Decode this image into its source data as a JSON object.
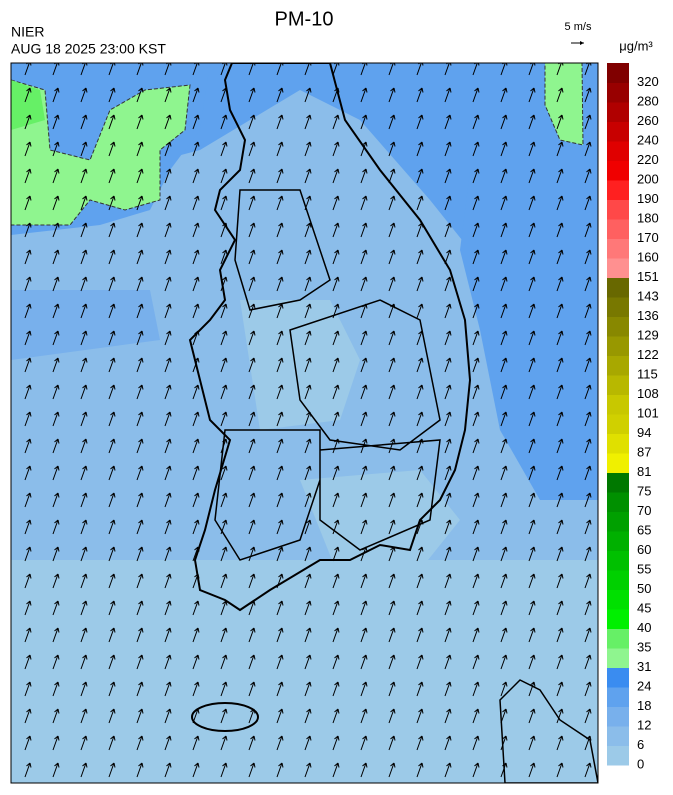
{
  "header": {
    "title": "PM-10",
    "agency": "NIER",
    "datetime": "AUG 18 2025 23:00 KST",
    "wind_scale": "5 m/s"
  },
  "legend": {
    "unit": "μg/m³",
    "levels": [
      0,
      6,
      12,
      18,
      24,
      31,
      35,
      40,
      45,
      50,
      55,
      60,
      65,
      70,
      75,
      81,
      87,
      94,
      101,
      108,
      115,
      122,
      129,
      136,
      143,
      151,
      160,
      170,
      180,
      190,
      200,
      220,
      240,
      260,
      280,
      320
    ],
    "colors": [
      "#9ccae8",
      "#8bbdea",
      "#78b0ec",
      "#5fa2ee",
      "#3a8cf0",
      "#8ff58f",
      "#66f066",
      "#00f000",
      "#00e000",
      "#00d000",
      "#00c000",
      "#00b000",
      "#00a000",
      "#009000",
      "#007800",
      "#f0f000",
      "#e0e000",
      "#d0d000",
      "#c8c800",
      "#b8b800",
      "#a8a800",
      "#989800",
      "#888800",
      "#787800",
      "#686800",
      "#ff9090",
      "#ff7878",
      "#ff6060",
      "#ff4848",
      "#ff2020",
      "#f00000",
      "#e00000",
      "#c80000",
      "#b00000",
      "#980000",
      "#800000"
    ]
  }
}
